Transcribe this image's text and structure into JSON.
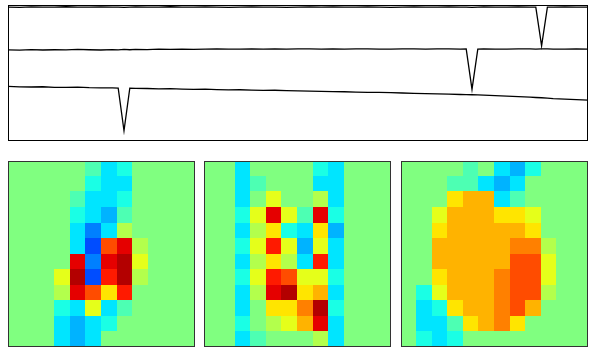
{
  "chart_data": [
    {
      "type": "line",
      "xlim": [
        0,
        100
      ],
      "ylim": [
        0,
        10
      ],
      "grid": false,
      "tick_labels": false,
      "x": [
        0,
        2,
        4,
        6,
        8,
        10,
        12,
        14,
        16,
        18,
        19,
        20,
        21,
        22,
        24,
        26,
        28,
        30,
        32,
        34,
        36,
        38,
        40,
        42,
        44,
        46,
        48,
        50,
        52,
        54,
        56,
        58,
        60,
        62,
        64,
        66,
        68,
        70,
        72,
        74,
        76,
        78,
        79,
        80,
        81,
        82,
        84,
        86,
        88,
        90,
        91,
        92,
        93,
        94,
        96,
        98,
        100
      ],
      "series": [
        {
          "color": "#000000",
          "values": [
            9.85,
            9.83,
            9.86,
            9.84,
            9.85,
            9.87,
            9.84,
            9.85,
            9.86,
            9.84,
            9.85,
            9.83,
            9.85,
            9.86,
            9.84,
            9.85,
            9.87,
            9.85,
            9.84,
            9.86,
            9.85,
            9.83,
            9.85,
            9.86,
            9.84,
            9.85,
            9.83,
            9.85,
            9.86,
            9.84,
            9.86,
            9.85,
            9.84,
            9.86,
            9.85,
            9.83,
            9.85,
            9.86,
            9.84,
            9.85,
            9.86,
            9.84,
            9.85,
            9.83,
            9.85,
            9.86,
            9.84,
            9.85,
            9.86,
            9.84,
            9.85,
            7.0,
            9.85,
            9.84,
            9.86,
            9.85,
            9.84
          ]
        },
        {
          "color": "#000000",
          "values": [
            6.7,
            6.68,
            6.72,
            6.69,
            6.71,
            6.7,
            6.73,
            6.71,
            6.69,
            6.72,
            6.7,
            6.73,
            6.71,
            6.74,
            6.72,
            6.75,
            6.73,
            6.76,
            6.74,
            6.75,
            6.77,
            6.75,
            6.76,
            6.78,
            6.75,
            6.77,
            6.76,
            6.78,
            6.77,
            6.75,
            6.77,
            6.76,
            6.78,
            6.77,
            6.75,
            6.76,
            6.78,
            6.77,
            6.76,
            6.78,
            6.77,
            6.76,
            6.77,
            3.8,
            6.76,
            6.77,
            6.75,
            6.76,
            6.78,
            6.77,
            6.76,
            6.78,
            6.77,
            6.76,
            6.75,
            6.77,
            6.76
          ]
        },
        {
          "color": "#000000",
          "values": [
            4.02,
            3.98,
            3.97,
            3.99,
            3.95,
            3.94,
            3.96,
            3.92,
            3.91,
            3.9,
            3.89,
            0.75,
            3.88,
            3.87,
            3.86,
            3.84,
            3.85,
            3.82,
            3.8,
            3.81,
            3.78,
            3.76,
            3.77,
            3.74,
            3.72,
            3.73,
            3.7,
            3.68,
            3.67,
            3.65,
            3.63,
            3.62,
            3.6,
            3.58,
            3.57,
            3.55,
            3.53,
            3.5,
            3.48,
            3.46,
            3.44,
            3.42,
            3.41,
            3.4,
            3.39,
            3.37,
            3.34,
            3.3,
            3.26,
            3.22,
            3.2,
            3.18,
            3.16,
            3.12,
            3.08,
            3.04,
            3.0
          ]
        }
      ]
    },
    {
      "type": "heatmap",
      "xlim": [
        0,
        12
      ],
      "ylim": [
        0,
        12
      ],
      "grid": false,
      "tick_labels": false,
      "color_range": [
        -1,
        1
      ],
      "cells": [
        [
          0,
          0,
          0,
          0,
          0,
          -0.1,
          -0.3,
          -0.2,
          0,
          0,
          0,
          0
        ],
        [
          0,
          0,
          0,
          0,
          0,
          -0.2,
          -0.3,
          -0.3,
          0,
          0,
          0,
          0
        ],
        [
          0,
          0,
          0,
          0,
          -0.1,
          -0.3,
          -0.3,
          -0.2,
          0,
          0,
          0,
          0
        ],
        [
          0,
          0,
          0,
          0,
          -0.2,
          -0.3,
          -0.4,
          -0.1,
          0,
          0,
          0,
          0
        ],
        [
          0,
          0,
          0,
          0,
          -0.3,
          -0.5,
          -0.3,
          0.1,
          0,
          0,
          0,
          0
        ],
        [
          0,
          0,
          0,
          0,
          -0.3,
          -0.6,
          0.6,
          0.8,
          0.1,
          0,
          0,
          0
        ],
        [
          0,
          0,
          0,
          0,
          0.8,
          -0.5,
          0.8,
          0.9,
          0.2,
          0,
          0,
          0
        ],
        [
          0,
          0,
          0,
          0.2,
          0.9,
          -0.6,
          0.7,
          0.9,
          0.1,
          0,
          0,
          0
        ],
        [
          0,
          0,
          0,
          0.1,
          0.8,
          0.6,
          0.3,
          0.7,
          0,
          0,
          0,
          0
        ],
        [
          0,
          0,
          0,
          -0.2,
          -0.3,
          0.2,
          -0.3,
          -0.1,
          0,
          0,
          0,
          0
        ],
        [
          0,
          0,
          0,
          -0.3,
          -0.4,
          -0.3,
          -0.2,
          0,
          0,
          0,
          0,
          0
        ],
        [
          0,
          0,
          0,
          -0.3,
          -0.4,
          -0.3,
          0,
          0,
          0,
          0,
          0,
          0
        ]
      ]
    },
    {
      "type": "heatmap",
      "xlim": [
        0,
        12
      ],
      "ylim": [
        0,
        12
      ],
      "grid": false,
      "tick_labels": false,
      "color_range": [
        -1,
        1
      ],
      "cells": [
        [
          0,
          0,
          -0.3,
          0,
          0,
          0,
          0,
          -0.2,
          -0.3,
          0,
          0,
          0
        ],
        [
          0,
          0,
          -0.3,
          -0.1,
          0,
          0,
          0,
          -0.3,
          -0.3,
          0,
          0,
          0
        ],
        [
          0,
          0,
          -0.3,
          0,
          0.2,
          0,
          0,
          0.1,
          -0.3,
          0,
          0,
          0
        ],
        [
          0,
          0,
          -0.2,
          0.2,
          0.8,
          0.2,
          -0.1,
          0.8,
          -0.2,
          0,
          0,
          0
        ],
        [
          0,
          0,
          -0.3,
          0.1,
          0.3,
          -0.2,
          -0.3,
          0.3,
          -0.4,
          0,
          0,
          0
        ],
        [
          0,
          0,
          -0.2,
          0.2,
          0.7,
          0.2,
          -0.4,
          0.2,
          -0.3,
          0,
          0,
          0
        ],
        [
          0,
          0,
          -0.3,
          0.1,
          0.3,
          0.1,
          -0.3,
          0.7,
          -0.3,
          0,
          0,
          0
        ],
        [
          0,
          0,
          -0.2,
          0.2,
          0.7,
          0.6,
          0.2,
          0.2,
          -0.2,
          0,
          0,
          0
        ],
        [
          0,
          0,
          -0.3,
          0.1,
          0.8,
          0.9,
          0.3,
          0.4,
          -0.3,
          0,
          0,
          0
        ],
        [
          0,
          0,
          -0.3,
          0,
          0.3,
          0.3,
          0.5,
          0.9,
          -0.2,
          0,
          0,
          0
        ],
        [
          0,
          0,
          -0.2,
          0,
          0.1,
          0.2,
          0.4,
          0.8,
          -0.3,
          0,
          0,
          0
        ],
        [
          0,
          0,
          -0.3,
          -0.1,
          0,
          0,
          0,
          0.1,
          -0.3,
          0,
          0,
          0
        ]
      ]
    },
    {
      "type": "heatmap",
      "xlim": [
        0,
        12
      ],
      "ylim": [
        0,
        12
      ],
      "grid": false,
      "tick_labels": false,
      "color_range": [
        -1,
        1
      ],
      "cells": [
        [
          0,
          0,
          0,
          0,
          -0.1,
          0,
          -0.3,
          -0.4,
          -0.2,
          0,
          0,
          0
        ],
        [
          0,
          0,
          0,
          -0.1,
          -0.1,
          -0.3,
          -0.4,
          -0.3,
          0,
          0,
          0,
          0
        ],
        [
          0,
          0,
          0,
          0.3,
          0.4,
          0.4,
          -0.3,
          -0.1,
          0,
          0,
          0,
          0
        ],
        [
          0,
          0,
          0.2,
          0.4,
          0.4,
          0.4,
          0.3,
          0.3,
          0.2,
          0,
          0,
          0
        ],
        [
          0,
          0,
          0.3,
          0.4,
          0.4,
          0.4,
          0.4,
          0.4,
          0.3,
          0,
          0,
          0
        ],
        [
          0,
          0,
          0.4,
          0.4,
          0.4,
          0.4,
          0.4,
          0.5,
          0.5,
          0.1,
          0,
          0
        ],
        [
          0,
          0,
          0.4,
          0.4,
          0.4,
          0.4,
          0.4,
          0.6,
          0.6,
          0.2,
          0,
          0
        ],
        [
          0,
          0,
          0.3,
          0.4,
          0.4,
          0.4,
          0.5,
          0.6,
          0.6,
          0.2,
          0,
          0
        ],
        [
          0,
          -0.2,
          0.2,
          0.4,
          0.4,
          0.4,
          0.5,
          0.6,
          0.6,
          0.1,
          0,
          0
        ],
        [
          0,
          -0.3,
          -0.2,
          0.3,
          0.4,
          0.4,
          0.5,
          0.6,
          0.4,
          0,
          0,
          0
        ],
        [
          0,
          -0.3,
          -0.3,
          -0.1,
          0.3,
          0.4,
          0.5,
          0.3,
          0,
          0,
          0,
          0
        ],
        [
          0,
          -0.2,
          -0.3,
          -0.2,
          0,
          0,
          0,
          0,
          0,
          0,
          0,
          0
        ]
      ]
    }
  ]
}
